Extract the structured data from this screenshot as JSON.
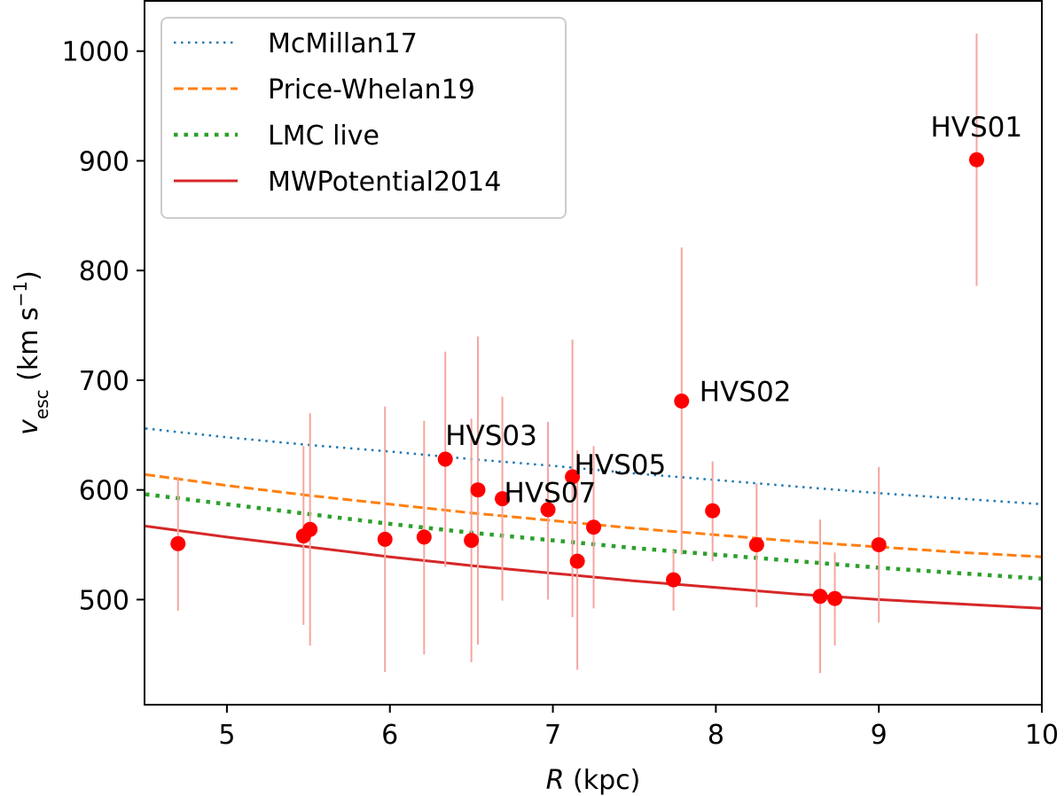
{
  "chart_data": {
    "type": "scatter",
    "xlabel": "R (kpc)",
    "ylabel": "v_esc (km s^-1)",
    "xlabel_parts": {
      "var": "R",
      "unit": " (kpc)"
    },
    "ylabel_parts": {
      "var": "v",
      "sub": "esc",
      "unit_open": " (km s",
      "sup": "−1",
      "unit_close": ")"
    },
    "xlim": [
      4.5,
      10
    ],
    "ylim": [
      405,
      1045
    ],
    "xticks": [
      5,
      6,
      7,
      8,
      9,
      10
    ],
    "yticks": [
      500,
      600,
      700,
      800,
      900,
      1000
    ],
    "grid": false,
    "legend_position": "top-left",
    "curves": [
      {
        "name": "McMillan17",
        "style": "dotted",
        "color": "#1f77b4",
        "x": [
          4.5,
          5,
          5.5,
          6,
          6.5,
          7,
          7.5,
          8,
          8.5,
          9,
          9.5,
          10
        ],
        "y": [
          656,
          648,
          641,
          635,
          628,
          622,
          615,
          609,
          603,
          597,
          592,
          587
        ]
      },
      {
        "name": "Price-Whelan19",
        "style": "dashed",
        "color": "#ff7f0e",
        "x": [
          4.5,
          5,
          5.5,
          6,
          6.5,
          7,
          7.5,
          8,
          8.5,
          9,
          9.5,
          10
        ],
        "y": [
          614,
          604,
          595,
          587,
          579,
          572,
          565,
          559,
          553,
          548,
          543,
          539
        ]
      },
      {
        "name": "LMC live",
        "style": "dotted-bold",
        "color": "#2ca02c",
        "x": [
          4.5,
          5,
          5.5,
          6,
          6.5,
          7,
          7.5,
          8,
          8.5,
          9,
          9.5,
          10
        ],
        "y": [
          596,
          587,
          578,
          569,
          561,
          554,
          547,
          541,
          535,
          529,
          524,
          519
        ]
      },
      {
        "name": "MWPotential2014",
        "style": "solid",
        "color": "#d62728",
        "x": [
          4.5,
          5,
          5.5,
          6,
          6.5,
          7,
          7.5,
          8,
          8.5,
          9,
          9.5,
          10
        ],
        "y": [
          567,
          557,
          548,
          539,
          531,
          524,
          517,
          511,
          505,
          500,
          496,
          492
        ]
      }
    ],
    "points": {
      "color": "#ff0000",
      "errorbar_color": "#f4a6a0",
      "data": [
        {
          "x": 4.7,
          "y": 551,
          "yerr_low": 490,
          "yerr_high": 612
        },
        {
          "x": 5.47,
          "y": 558,
          "yerr_low": 477,
          "yerr_high": 640
        },
        {
          "x": 5.51,
          "y": 564,
          "yerr_low": 458,
          "yerr_high": 670
        },
        {
          "x": 5.97,
          "y": 555,
          "yerr_low": 434,
          "yerr_high": 676
        },
        {
          "x": 6.21,
          "y": 557,
          "yerr_low": 450,
          "yerr_high": 663
        },
        {
          "x": 6.34,
          "y": 628,
          "yerr_low": 530,
          "yerr_high": 726,
          "label": "HVS03"
        },
        {
          "x": 6.5,
          "y": 554,
          "yerr_low": 443,
          "yerr_high": 665
        },
        {
          "x": 6.54,
          "y": 600,
          "yerr_low": 459,
          "yerr_high": 740
        },
        {
          "x": 6.69,
          "y": 592,
          "yerr_low": 499,
          "yerr_high": 685,
          "label": "HVS07"
        },
        {
          "x": 6.97,
          "y": 582,
          "yerr_low": 500,
          "yerr_high": 662
        },
        {
          "x": 7.12,
          "y": 612,
          "yerr_low": 484,
          "yerr_high": 737,
          "label": "HVS05"
        },
        {
          "x": 7.15,
          "y": 535,
          "yerr_low": 436,
          "yerr_high": 636
        },
        {
          "x": 7.25,
          "y": 566,
          "yerr_low": 492,
          "yerr_high": 640
        },
        {
          "x": 7.74,
          "y": 518,
          "yerr_low": 490,
          "yerr_high": 545
        },
        {
          "x": 7.79,
          "y": 681,
          "yerr_low": 541,
          "yerr_high": 821,
          "label": "HVS02"
        },
        {
          "x": 7.98,
          "y": 581,
          "yerr_low": 535,
          "yerr_high": 626
        },
        {
          "x": 8.25,
          "y": 550,
          "yerr_low": 493,
          "yerr_high": 606
        },
        {
          "x": 8.64,
          "y": 503,
          "yerr_low": 433,
          "yerr_high": 573
        },
        {
          "x": 8.73,
          "y": 501,
          "yerr_low": 458,
          "yerr_high": 543
        },
        {
          "x": 9.0,
          "y": 550,
          "yerr_low": 479,
          "yerr_high": 621
        },
        {
          "x": 9.6,
          "y": 901,
          "yerr_low": 786,
          "yerr_high": 1016,
          "label": "HVS01"
        }
      ]
    }
  }
}
